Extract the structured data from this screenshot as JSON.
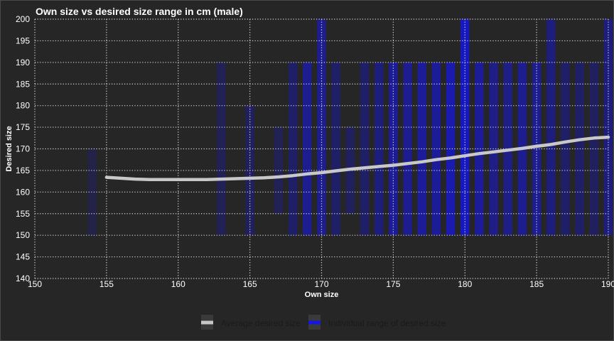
{
  "chart_data": {
    "type": "line",
    "title": "Own size vs desired size range in cm (male)",
    "xlabel": "Own size",
    "ylabel": "Desired size",
    "xlim": [
      150,
      190
    ],
    "ylim": [
      140,
      200
    ],
    "x_ticks": [
      150,
      155,
      160,
      165,
      170,
      175,
      180,
      185,
      190
    ],
    "y_ticks": [
      140,
      145,
      150,
      155,
      160,
      165,
      170,
      175,
      180,
      185,
      190,
      195,
      200
    ],
    "grid": true,
    "legend_position": "bottom",
    "series": [
      {
        "name": "Average desired size",
        "kind": "line",
        "color": "#c8c8c8",
        "x": [
          155,
          156,
          157,
          158,
          159,
          160,
          161,
          162,
          163,
          164,
          165,
          166,
          167,
          168,
          169,
          170,
          171,
          172,
          173,
          174,
          175,
          176,
          177,
          178,
          179,
          180,
          181,
          182,
          183,
          184,
          185,
          186,
          187,
          188,
          189,
          190
        ],
        "y": [
          163.4,
          163.2,
          163.0,
          162.9,
          162.9,
          162.9,
          162.9,
          162.9,
          163.0,
          163.1,
          163.2,
          163.3,
          163.5,
          163.8,
          164.2,
          164.5,
          164.9,
          165.3,
          165.6,
          165.9,
          166.2,
          166.6,
          167.0,
          167.5,
          167.9,
          168.4,
          168.9,
          169.3,
          169.7,
          170.1,
          170.6,
          171.0,
          171.6,
          172.1,
          172.5,
          172.7
        ]
      },
      {
        "name": "Individual range of desired size",
        "kind": "range",
        "color": "#1515e6",
        "ranges": [
          {
            "x": 154,
            "low": 150,
            "high": 170,
            "alpha": 0.18
          },
          {
            "x": 163,
            "low": 150,
            "high": 190,
            "alpha": 0.25
          },
          {
            "x": 165,
            "low": 150,
            "high": 180,
            "alpha": 0.3
          },
          {
            "x": 167,
            "low": 155,
            "high": 175,
            "alpha": 0.25
          },
          {
            "x": 168,
            "low": 150,
            "high": 190,
            "alpha": 0.35
          },
          {
            "x": 169,
            "low": 150,
            "high": 190,
            "alpha": 0.55
          },
          {
            "x": 170,
            "low": 150,
            "high": 200,
            "alpha": 0.55
          },
          {
            "x": 171,
            "low": 150,
            "high": 190,
            "alpha": 0.35
          },
          {
            "x": 172,
            "low": 155,
            "high": 175,
            "alpha": 0.3
          },
          {
            "x": 173,
            "low": 150,
            "high": 190,
            "alpha": 0.35
          },
          {
            "x": 174,
            "low": 150,
            "high": 190,
            "alpha": 0.45
          },
          {
            "x": 175,
            "low": 150,
            "high": 190,
            "alpha": 0.6
          },
          {
            "x": 176,
            "low": 150,
            "high": 190,
            "alpha": 0.55
          },
          {
            "x": 177,
            "low": 150,
            "high": 190,
            "alpha": 0.6
          },
          {
            "x": 178,
            "low": 150,
            "high": 190,
            "alpha": 0.6
          },
          {
            "x": 179,
            "low": 150,
            "high": 190,
            "alpha": 0.7
          },
          {
            "x": 180,
            "low": 150,
            "high": 200,
            "alpha": 0.8
          },
          {
            "x": 181,
            "low": 150,
            "high": 190,
            "alpha": 0.6
          },
          {
            "x": 182,
            "low": 150,
            "high": 190,
            "alpha": 0.5
          },
          {
            "x": 183,
            "low": 150,
            "high": 190,
            "alpha": 0.5
          },
          {
            "x": 184,
            "low": 150,
            "high": 190,
            "alpha": 0.55
          },
          {
            "x": 185,
            "low": 150,
            "high": 190,
            "alpha": 0.55
          },
          {
            "x": 186,
            "low": 150,
            "high": 200,
            "alpha": 0.45
          },
          {
            "x": 187,
            "low": 150,
            "high": 190,
            "alpha": 0.35
          },
          {
            "x": 188,
            "low": 150,
            "high": 190,
            "alpha": 0.35
          },
          {
            "x": 189,
            "low": 150,
            "high": 190,
            "alpha": 0.3
          },
          {
            "x": 190,
            "low": 150,
            "high": 200,
            "alpha": 0.45
          }
        ]
      }
    ]
  }
}
